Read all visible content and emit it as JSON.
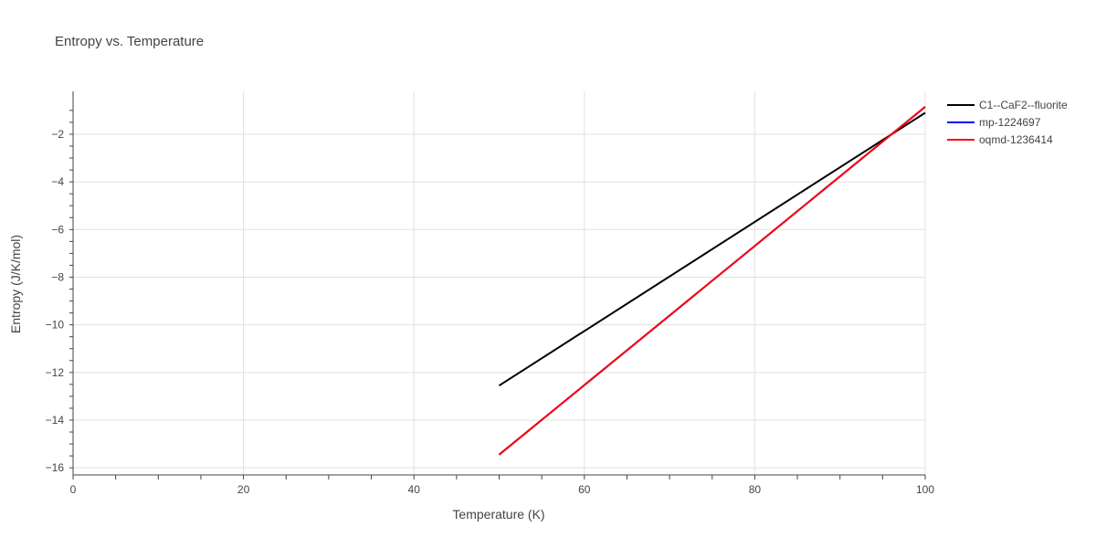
{
  "chart_data": {
    "type": "line",
    "title": "Entropy vs. Temperature",
    "xlabel": "Temperature (K)",
    "ylabel": "Entropy (J/K/mol)",
    "xlim": [
      0,
      100
    ],
    "ylim": [
      -16.3,
      -0.2
    ],
    "x_ticks": [
      0,
      20,
      40,
      60,
      80,
      100
    ],
    "y_ticks": [
      -16,
      -14,
      -12,
      -10,
      -8,
      -6,
      -4,
      -2
    ],
    "grid": true,
    "legend_position": "top-right",
    "series": [
      {
        "name": "C1--CaF2--fluorite",
        "color": "#000000",
        "x": [
          50,
          100
        ],
        "y": [
          -12.55,
          -1.1
        ]
      },
      {
        "name": "mp-1224697",
        "color": "#0000ff",
        "x": [
          50,
          100
        ],
        "y": [
          -15.45,
          -0.85
        ]
      },
      {
        "name": "oqmd-1236414",
        "color": "#ff0000",
        "x": [
          50,
          100
        ],
        "y": [
          -15.45,
          -0.85
        ]
      }
    ]
  }
}
